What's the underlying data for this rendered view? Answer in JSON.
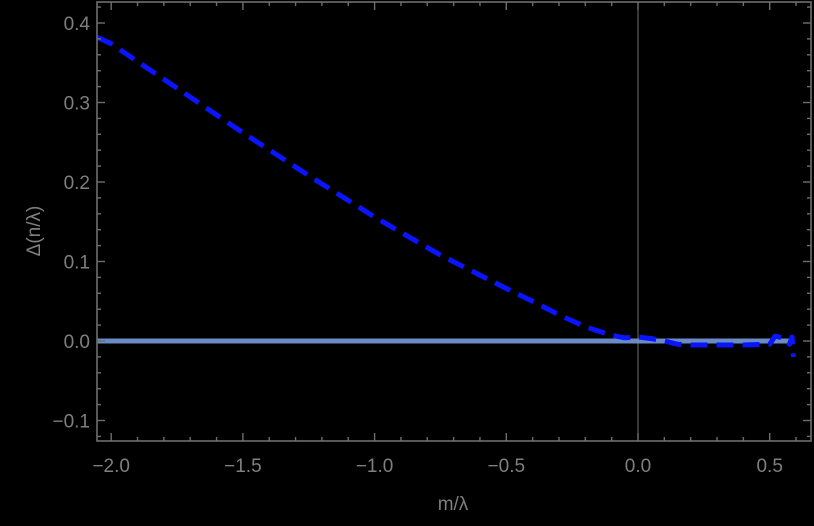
{
  "chart_data": {
    "type": "line",
    "title": "",
    "xlabel": "m/λ",
    "ylabel": "Δ(n/λ)",
    "xlim": [
      -2.053,
      0.6
    ],
    "ylim": [
      -0.125,
      0.425
    ],
    "grid": false,
    "legend": null,
    "x_ticks": [
      {
        "value": -2.0,
        "label": "−2.0"
      },
      {
        "value": -1.5,
        "label": "−1.5"
      },
      {
        "value": -1.0,
        "label": "−1.0"
      },
      {
        "value": -0.5,
        "label": "−0.5"
      },
      {
        "value": 0.0,
        "label": "0.0"
      },
      {
        "value": 0.5,
        "label": "0.5"
      }
    ],
    "y_ticks": [
      {
        "value": 0.4,
        "label": "0.4"
      },
      {
        "value": 0.3,
        "label": "0.3"
      },
      {
        "value": 0.2,
        "label": "0.2"
      },
      {
        "value": 0.1,
        "label": "0.1"
      },
      {
        "value": 0.0,
        "label": "0.0"
      },
      {
        "value": -0.1,
        "label": "−0.1"
      }
    ],
    "series": [
      {
        "name": "dashed curve",
        "style": "dashed",
        "color": "#0a14ff",
        "x": [
          -2.053,
          -2.0,
          -1.75,
          -1.5,
          -1.25,
          -1.0,
          -0.75,
          -0.5,
          -0.4,
          -0.3,
          -0.2,
          -0.1,
          -0.05,
          0.0,
          0.05,
          0.1,
          0.15,
          0.2,
          0.3,
          0.4,
          0.5,
          0.52,
          0.55,
          0.575,
          0.585,
          0.59
        ],
        "y": [
          0.382,
          0.374,
          0.318,
          0.262,
          0.208,
          0.156,
          0.108,
          0.066,
          0.05,
          0.033,
          0.018,
          0.007,
          0.004,
          0.005,
          0.003,
          0.0,
          -0.004,
          -0.005,
          -0.005,
          -0.005,
          -0.004,
          0.006,
          0.004,
          -0.004,
          0.005,
          -0.02
        ]
      },
      {
        "name": "solid zero line",
        "style": "solid",
        "color": "#6a8cc5",
        "x": [
          -2.053,
          0.588
        ],
        "y": [
          0.0,
          0.0
        ]
      }
    ],
    "reference_lines": [
      {
        "orientation": "vertical",
        "x": 0.0,
        "color": "#6e6e6e"
      }
    ]
  },
  "axes": {
    "frame_color": "#6e6e6e",
    "label_color": "#7f7f7f"
  }
}
